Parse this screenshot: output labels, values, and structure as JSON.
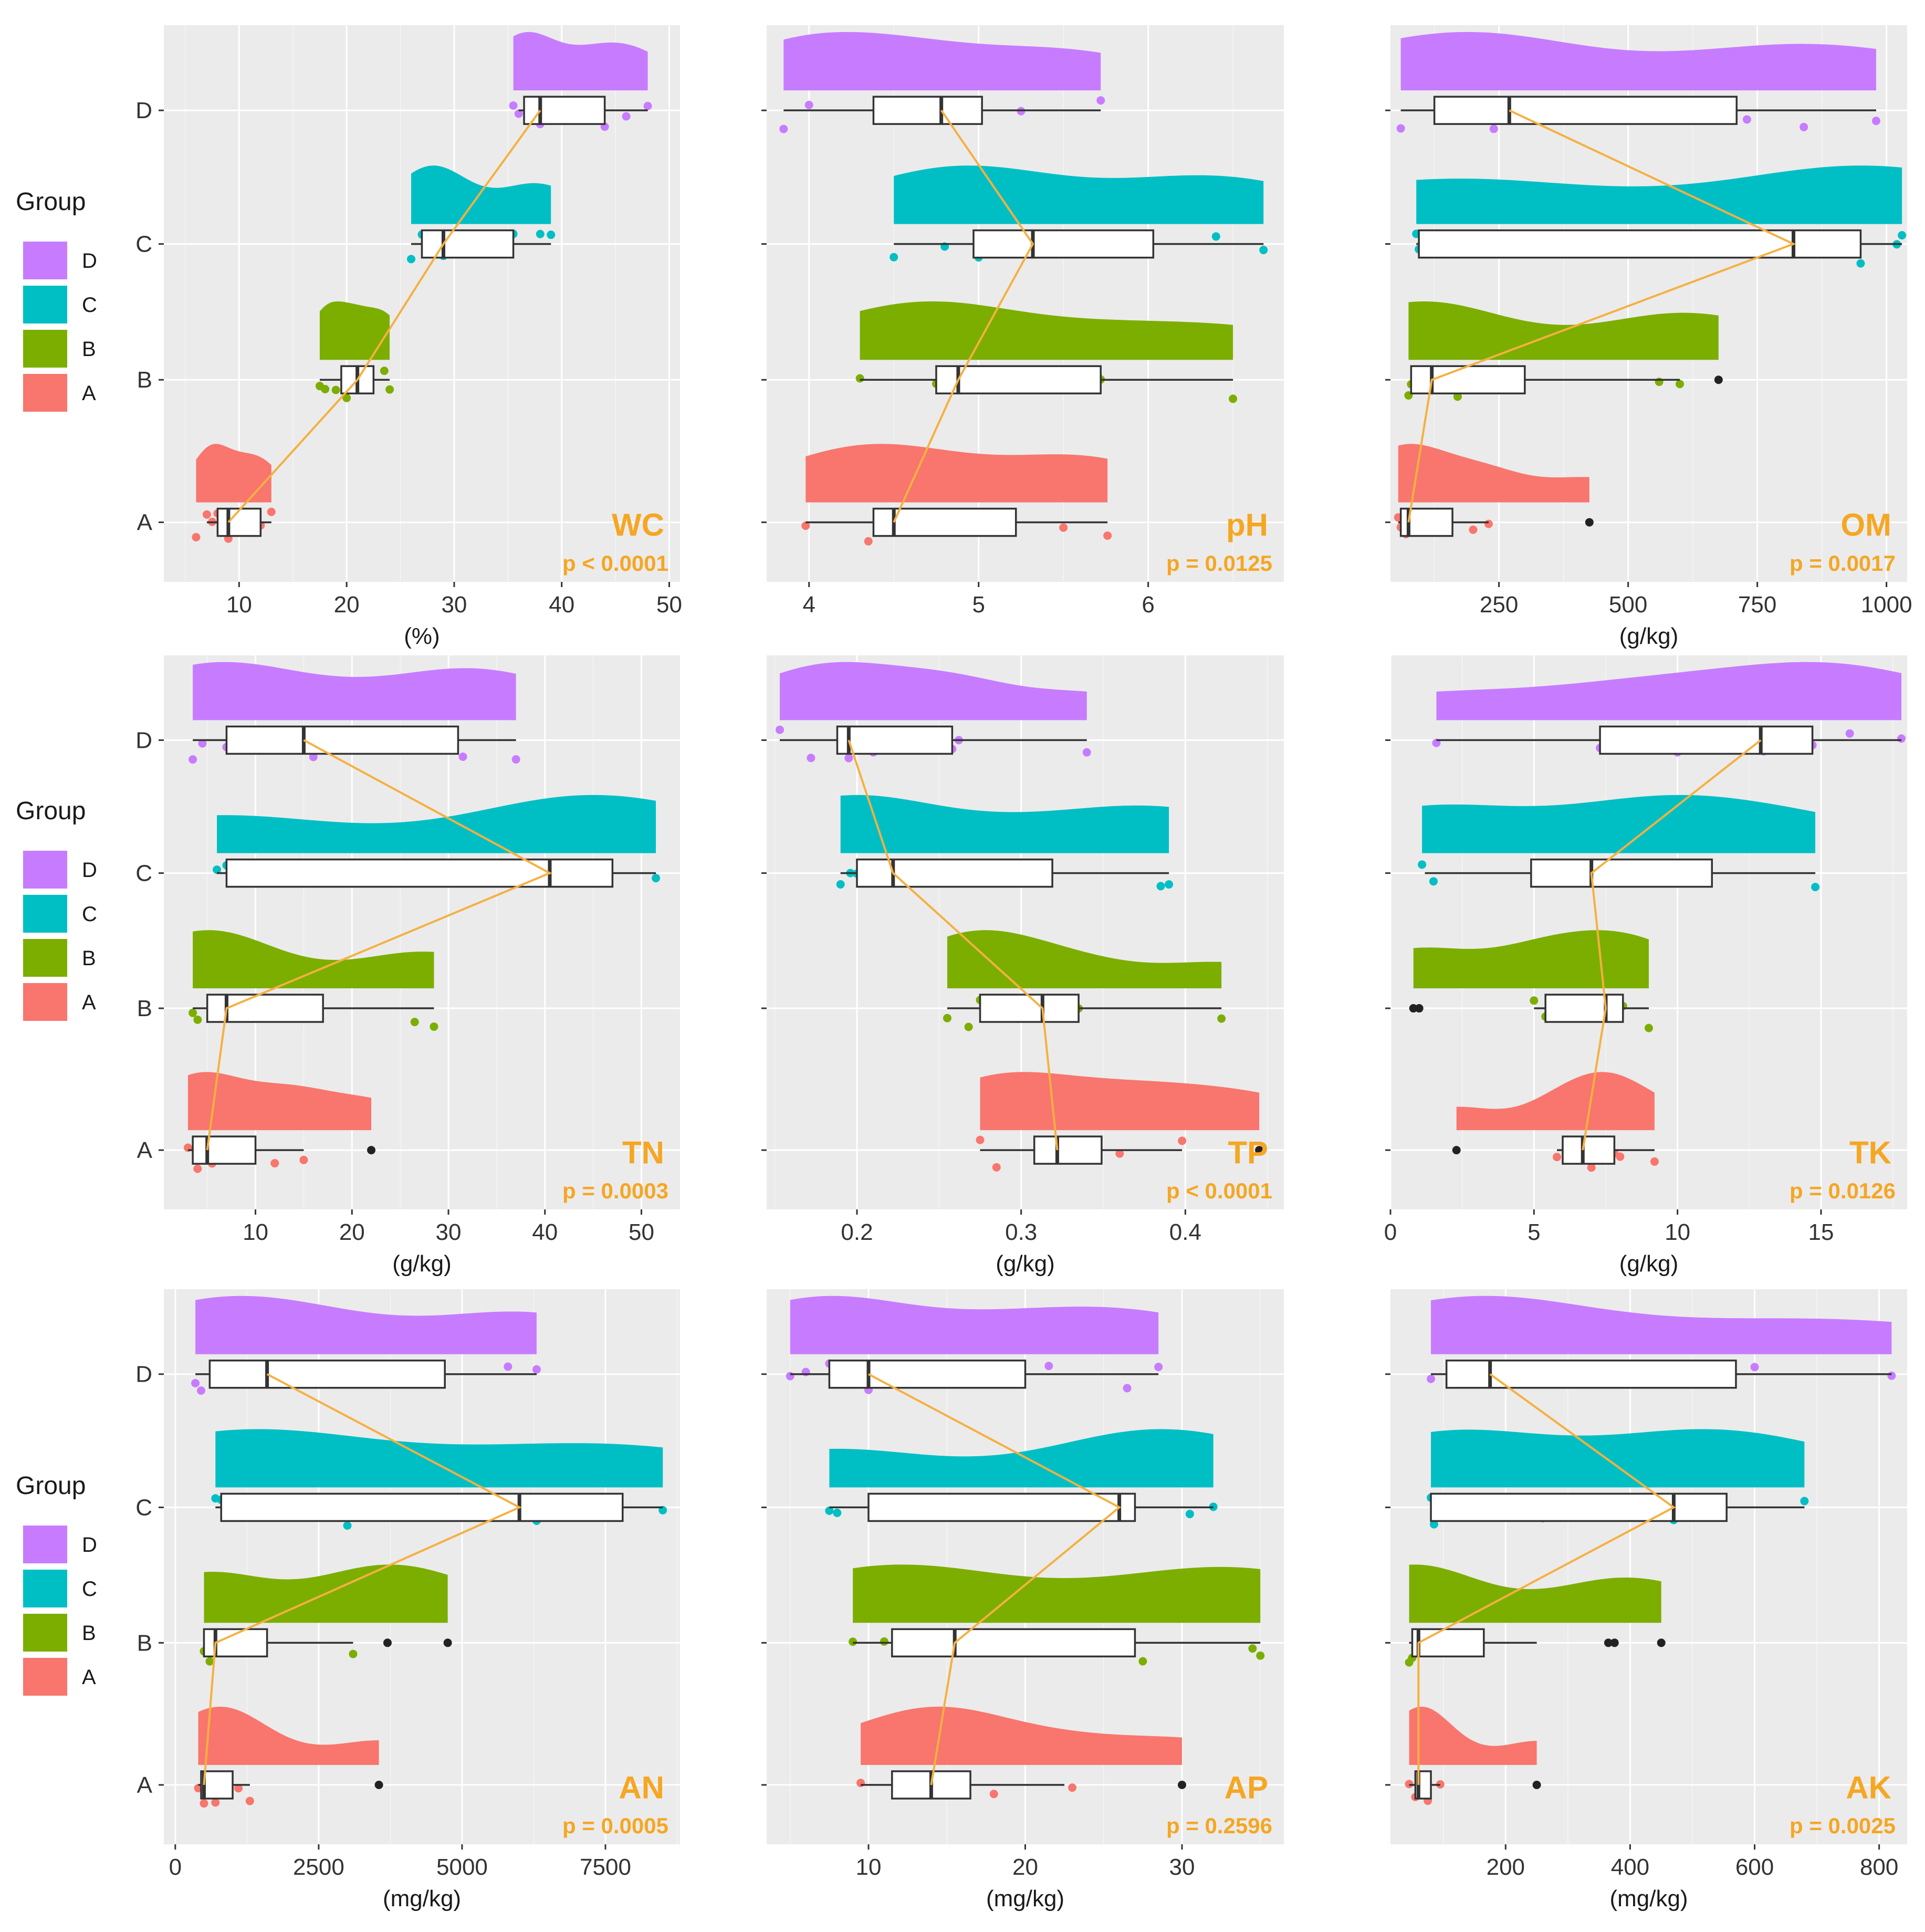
{
  "colors": {
    "A": "#f8766d",
    "B": "#7cae00",
    "C": "#00bfc4",
    "D": "#c77cff",
    "trend": "#f5b041",
    "annotation": "#f5a623"
  },
  "legend": {
    "title": "Group",
    "items": [
      "D",
      "C",
      "B",
      "A"
    ]
  },
  "chart_data": [
    {
      "type": "raincloud",
      "variable": "WC",
      "p_text": "p < 0.0001",
      "xlabel": "(%)",
      "xlim": [
        3,
        51
      ],
      "xticks": [
        10,
        20,
        30,
        40,
        50
      ],
      "groups": [
        "A",
        "B",
        "C",
        "D"
      ],
      "box": {
        "A": {
          "min": 7,
          "q1": 8,
          "median": 9,
          "q3": 12,
          "max": 13
        },
        "B": {
          "min": 17.5,
          "q1": 19.5,
          "median": 21,
          "q3": 22.5,
          "max": 24
        },
        "C": {
          "min": 26,
          "q1": 27,
          "median": 29,
          "q3": 35.5,
          "max": 39
        },
        "D": {
          "min": 36,
          "q1": 36.5,
          "median": 38,
          "q3": 44,
          "max": 48
        }
      },
      "points": {
        "A": [
          6,
          7,
          7.5,
          8,
          9,
          10,
          11,
          12,
          13
        ],
        "B": [
          17.5,
          18,
          19,
          20,
          21,
          22,
          23.5,
          24
        ],
        "C": [
          26,
          27,
          28,
          29,
          30,
          35.5,
          38,
          39
        ],
        "D": [
          35.5,
          36,
          37,
          38,
          42,
          44,
          46,
          48
        ]
      }
    },
    {
      "type": "raincloud",
      "variable": "pH",
      "p_text": "p = 0.0125",
      "xlabel": "",
      "xlim": [
        3.75,
        6.8
      ],
      "xticks": [
        4,
        5,
        6
      ],
      "groups": [
        "A",
        "B",
        "C",
        "D"
      ],
      "box": {
        "A": {
          "min": 3.98,
          "q1": 4.38,
          "median": 4.5,
          "q3": 5.22,
          "max": 5.76
        },
        "B": {
          "min": 4.3,
          "q1": 4.75,
          "median": 4.88,
          "q3": 5.72,
          "max": 6.5
        },
        "C": {
          "min": 4.5,
          "q1": 4.97,
          "median": 5.32,
          "q3": 6.03,
          "max": 6.68
        },
        "D": {
          "min": 3.85,
          "q1": 4.38,
          "median": 4.78,
          "q3": 5.02,
          "max": 5.72
        }
      },
      "points": {
        "A": [
          3.98,
          4.35,
          4.5,
          4.95,
          5.5,
          5.76
        ],
        "B": [
          4.3,
          4.75,
          4.88,
          5.72,
          6.5
        ],
        "C": [
          4.5,
          4.8,
          5.0,
          5.32,
          6.0,
          6.4,
          6.68
        ],
        "D": [
          3.85,
          4.0,
          4.4,
          4.7,
          5.25,
          5.72
        ]
      }
    },
    {
      "type": "raincloud",
      "variable": "OM",
      "p_text": "p = 0.0017",
      "xlabel": "(g/kg)",
      "xlim": [
        40,
        1040
      ],
      "xticks": [
        250,
        500,
        750,
        1000
      ],
      "groups": [
        "A",
        "B",
        "C",
        "D"
      ],
      "box": {
        "A": {
          "min": 55,
          "q1": 60,
          "median": 75,
          "q3": 160,
          "max": 230
        },
        "B": {
          "min": 80,
          "q1": 80,
          "median": 120,
          "q3": 300,
          "max": 600
        },
        "C": {
          "min": 90,
          "q1": 95,
          "median": 820,
          "q3": 950,
          "max": 1030
        },
        "D": {
          "min": 60,
          "q1": 125,
          "median": 270,
          "q3": 710,
          "max": 980
        }
      },
      "points": {
        "A": [
          55,
          60,
          70,
          80,
          200,
          230,
          425
        ],
        "B": [
          75,
          80,
          90,
          170,
          560,
          600,
          675
        ],
        "C": [
          90,
          95,
          350,
          820,
          950,
          1020,
          1030
        ],
        "D": [
          60,
          140,
          240,
          280,
          730,
          840,
          980
        ]
      },
      "outliers": {
        "A": [
          425
        ],
        "B": [
          675
        ]
      }
    },
    {
      "type": "raincloud",
      "variable": "TN",
      "p_text": "p = 0.0003",
      "xlabel": "(g/kg)",
      "xlim": [
        0.5,
        54
      ],
      "xticks": [
        10,
        20,
        30,
        40,
        50
      ],
      "groups": [
        "A",
        "B",
        "C",
        "D"
      ],
      "box": {
        "A": {
          "min": 3,
          "q1": 3.5,
          "median": 5,
          "q3": 10,
          "max": 15
        },
        "B": {
          "min": 3.5,
          "q1": 5,
          "median": 7,
          "q3": 17,
          "max": 28.5
        },
        "C": {
          "min": 6,
          "q1": 7,
          "median": 40.5,
          "q3": 47,
          "max": 51.5
        },
        "D": {
          "min": 3.5,
          "q1": 7,
          "median": 15,
          "q3": 31,
          "max": 37
        }
      },
      "points": {
        "A": [
          3,
          4,
          5.5,
          12,
          15,
          22
        ],
        "B": [
          3.5,
          4,
          6,
          7,
          26.5,
          28.5
        ],
        "C": [
          6,
          7,
          40.5,
          43,
          46,
          51.5
        ],
        "D": [
          3.5,
          4.5,
          7,
          16,
          30,
          31.5,
          37
        ]
      },
      "outliers": {
        "A": [
          22
        ]
      }
    },
    {
      "type": "raincloud",
      "variable": "TP",
      "p_text": "p < 0.0001",
      "xlabel": "(g/kg)",
      "xlim": [
        0.145,
        0.46
      ],
      "xticks": [
        0.2,
        0.3,
        0.4
      ],
      "groups": [
        "A",
        "B",
        "C",
        "D"
      ],
      "box": {
        "A": {
          "min": 0.275,
          "q1": 0.308,
          "median": 0.322,
          "q3": 0.349,
          "max": 0.398
        },
        "B": {
          "min": 0.255,
          "q1": 0.275,
          "median": 0.313,
          "q3": 0.335,
          "max": 0.422
        },
        "C": {
          "min": 0.19,
          "q1": 0.2,
          "median": 0.222,
          "q3": 0.319,
          "max": 0.39
        },
        "D": {
          "min": 0.153,
          "q1": 0.188,
          "median": 0.195,
          "q3": 0.258,
          "max": 0.34
        }
      },
      "points": {
        "A": [
          0.275,
          0.285,
          0.32,
          0.36,
          0.398,
          0.445
        ],
        "B": [
          0.255,
          0.268,
          0.275,
          0.3,
          0.335,
          0.422
        ],
        "C": [
          0.19,
          0.196,
          0.2,
          0.305,
          0.385,
          0.39
        ],
        "D": [
          0.153,
          0.172,
          0.195,
          0.21,
          0.258,
          0.262,
          0.34
        ]
      },
      "outliers": {
        "A": [
          0.445
        ]
      }
    },
    {
      "type": "raincloud",
      "variable": "TK",
      "p_text": "p = 0.0126",
      "xlabel": "(g/kg)",
      "xlim": [
        0,
        18
      ],
      "xticks": [
        0,
        5,
        10,
        15
      ],
      "groups": [
        "A",
        "B",
        "C",
        "D"
      ],
      "box": {
        "A": {
          "min": 5.8,
          "q1": 6,
          "median": 6.7,
          "q3": 7.8,
          "max": 9.2
        },
        "B": {
          "min": 5,
          "q1": 5.4,
          "median": 7.5,
          "q3": 8.1,
          "max": 9
        },
        "C": {
          "min": 1.2,
          "q1": 4.9,
          "median": 7,
          "q3": 11.2,
          "max": 14.8
        },
        "D": {
          "min": 1.6,
          "q1": 7.3,
          "median": 12.9,
          "q3": 14.7,
          "max": 17.8
        }
      },
      "points": {
        "A": [
          2.3,
          5.8,
          6.2,
          7,
          7.6,
          7.8,
          8,
          9.2
        ],
        "B": [
          0.8,
          1,
          5,
          5.4,
          7.5,
          8.1,
          9
        ],
        "C": [
          1.1,
          1.5,
          7,
          9.9,
          11,
          14.8
        ],
        "D": [
          1.6,
          7.3,
          10,
          13,
          14.7,
          16,
          17.8
        ]
      },
      "outliers": {
        "A": [
          2.3
        ],
        "B": [
          0.8,
          1
        ]
      }
    },
    {
      "type": "raincloud",
      "variable": "AN",
      "p_text": "p = 0.0005",
      "xlabel": "(mg/kg)",
      "xlim": [
        -200,
        8800
      ],
      "xticks": [
        0,
        2500,
        5000,
        7500
      ],
      "groups": [
        "A",
        "B",
        "C",
        "D"
      ],
      "box": {
        "A": {
          "min": 400,
          "q1": 450,
          "median": 500,
          "q3": 1000,
          "max": 1300
        },
        "B": {
          "min": 500,
          "q1": 500,
          "median": 700,
          "q3": 1600,
          "max": 3100
        },
        "C": {
          "min": 700,
          "q1": 800,
          "median": 6000,
          "q3": 7800,
          "max": 8500
        },
        "D": {
          "min": 350,
          "q1": 600,
          "median": 1600,
          "q3": 4700,
          "max": 6300
        }
      },
      "points": {
        "A": [
          400,
          500,
          700,
          1100,
          1300,
          3550
        ],
        "B": [
          500,
          600,
          3100,
          3700,
          4750
        ],
        "C": [
          700,
          800,
          3000,
          6300,
          8500
        ],
        "D": [
          350,
          450,
          1600,
          2800,
          5800,
          6300
        ]
      },
      "outliers": {
        "A": [
          3550
        ],
        "B": [
          3700,
          4750
        ]
      }
    },
    {
      "type": "raincloud",
      "variable": "AP",
      "p_text": "p = 0.2596",
      "xlabel": "(mg/kg)",
      "xlim": [
        3.5,
        36.5
      ],
      "xticks": [
        10,
        20,
        30
      ],
      "groups": [
        "A",
        "B",
        "C",
        "D"
      ],
      "box": {
        "A": {
          "min": 9.5,
          "q1": 11.5,
          "median": 14,
          "q3": 16.5,
          "max": 22.5
        },
        "B": {
          "min": 9,
          "q1": 11.5,
          "median": 15.5,
          "q3": 27,
          "max": 35
        },
        "C": {
          "min": 7.5,
          "q1": 10,
          "median": 26,
          "q3": 27,
          "max": 32
        },
        "D": {
          "min": 5,
          "q1": 7.5,
          "median": 10,
          "q3": 20,
          "max": 28.5
        }
      },
      "points": {
        "A": [
          9.5,
          13,
          14,
          15.5,
          18,
          23,
          30
        ],
        "B": [
          9,
          11,
          15.5,
          27.5,
          34.5,
          35
        ],
        "C": [
          7.5,
          8,
          26,
          26.5,
          30.5,
          32
        ],
        "D": [
          5,
          6,
          7.5,
          10,
          17.5,
          21.5,
          26.5,
          28.5
        ]
      },
      "outliers": {
        "A": [
          30
        ]
      }
    },
    {
      "type": "raincloud",
      "variable": "AK",
      "p_text": "p = 0.0025",
      "xlabel": "(mg/kg)",
      "xlim": [
        15,
        845
      ],
      "xticks": [
        200,
        400,
        600,
        800
      ],
      "groups": [
        "A",
        "B",
        "C",
        "D"
      ],
      "box": {
        "A": {
          "min": 45,
          "q1": 55,
          "median": 60,
          "q3": 80,
          "max": 95
        },
        "B": {
          "min": 45,
          "q1": 50,
          "median": 60,
          "q3": 165,
          "max": 250
        },
        "C": {
          "min": 80,
          "q1": 80,
          "median": 470,
          "q3": 555,
          "max": 680
        },
        "D": {
          "min": 80,
          "q1": 105,
          "median": 175,
          "q3": 570,
          "max": 820
        }
      },
      "points": {
        "A": [
          45,
          55,
          60,
          75,
          95,
          250
        ],
        "B": [
          45,
          50,
          55,
          60,
          365,
          375,
          450
        ],
        "C": [
          80,
          85,
          260,
          470,
          530,
          680
        ],
        "D": [
          80,
          140,
          160,
          330,
          600,
          820
        ]
      },
      "outliers": {
        "A": [
          250
        ],
        "B": [
          365,
          375,
          450
        ]
      }
    }
  ]
}
